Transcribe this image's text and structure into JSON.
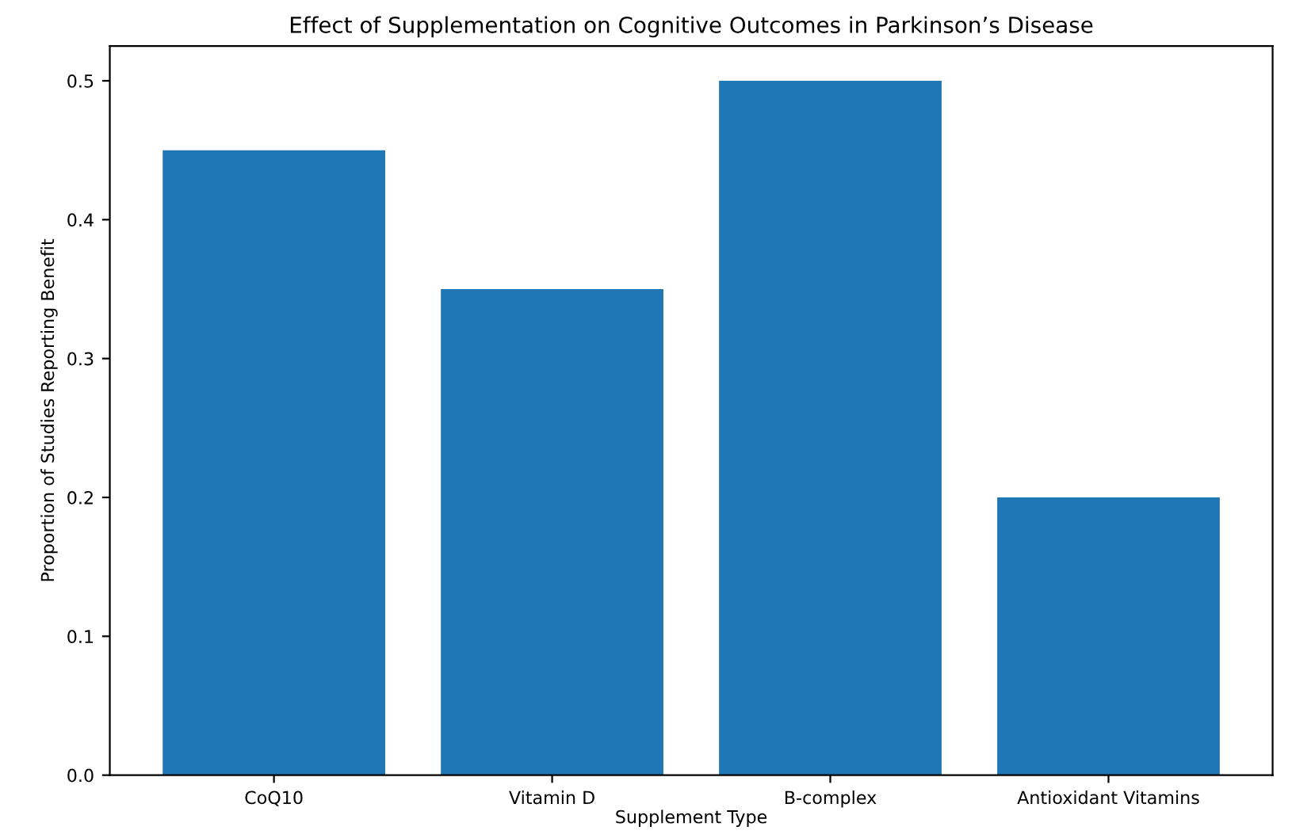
{
  "chart_data": {
    "type": "bar",
    "title": "Effect of Supplementation on Cognitive Outcomes in Parkinson’s Disease",
    "xlabel": "Supplement Type",
    "ylabel": "Proportion of Studies Reporting Benefit",
    "categories": [
      "CoQ10",
      "Vitamin D",
      "B-complex",
      "Antioxidant Vitamins"
    ],
    "values": [
      0.45,
      0.35,
      0.5,
      0.2
    ],
    "color": "#1f77b4",
    "ylim": [
      0,
      0.525
    ],
    "yticks": [
      {
        "value": 0,
        "label": "0.0"
      },
      0.1,
      0.2,
      0.3,
      0.4,
      0.5
    ],
    "grid": false
  }
}
